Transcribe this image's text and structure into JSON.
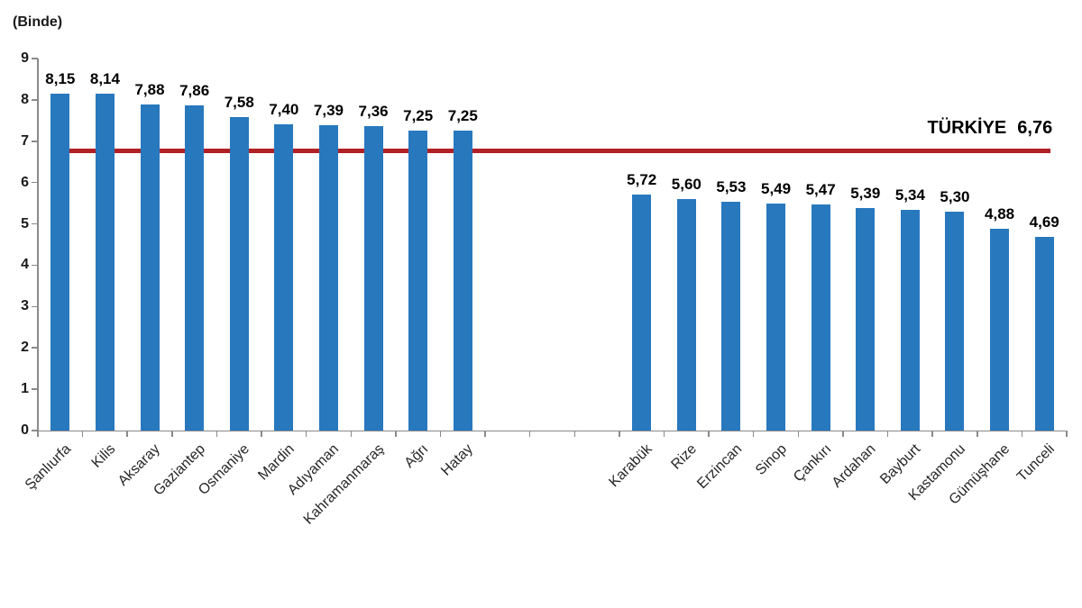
{
  "unit_label": "(Binde)",
  "colors": {
    "bar": "#2878BE",
    "reference_line": "#B02025",
    "axis": "#8A8A8A",
    "value_text": "#000000",
    "category_text": "#262626"
  },
  "y_axis": {
    "min": 0,
    "max": 9,
    "tick_labels": [
      "0",
      "1",
      "2",
      "3",
      "4",
      "5",
      "6",
      "7",
      "8",
      "9"
    ]
  },
  "chart_data": {
    "type": "bar",
    "title": "",
    "xlabel": "",
    "ylabel": "(Binde)",
    "ylim": [
      0,
      9
    ],
    "grid": false,
    "legend": "none",
    "categories": [
      "Şanlıurfa",
      "Kilis",
      "Aksaray",
      "Gaziantep",
      "Osmaniye",
      "Mardin",
      "Adıyaman",
      "Kahramanmaraş",
      "Ağrı",
      "Hatay",
      "Karabük",
      "Rize",
      "Erzincan",
      "Sinop",
      "Çankırı",
      "Ardahan",
      "Bayburt",
      "Kastamonu",
      "Gümüşhane",
      "Tunceli"
    ],
    "values": [
      8.15,
      8.14,
      7.88,
      7.86,
      7.58,
      7.4,
      7.39,
      7.36,
      7.25,
      7.25,
      5.72,
      5.6,
      5.53,
      5.49,
      5.47,
      5.39,
      5.34,
      5.3,
      4.88,
      4.69
    ],
    "value_labels": [
      "8,15",
      "8,14",
      "7,88",
      "7,86",
      "7,58",
      "7,40",
      "7,39",
      "7,36",
      "7,25",
      "7,25",
      "5,72",
      "5,60",
      "5,53",
      "5,49",
      "5,47",
      "5,39",
      "5,34",
      "5,30",
      "4,88",
      "4,69"
    ],
    "group_split_index": 10,
    "gap_slots": 3,
    "reference_line": {
      "label": "TÜRKİYE",
      "value": 6.76,
      "value_label": "6,76"
    }
  }
}
